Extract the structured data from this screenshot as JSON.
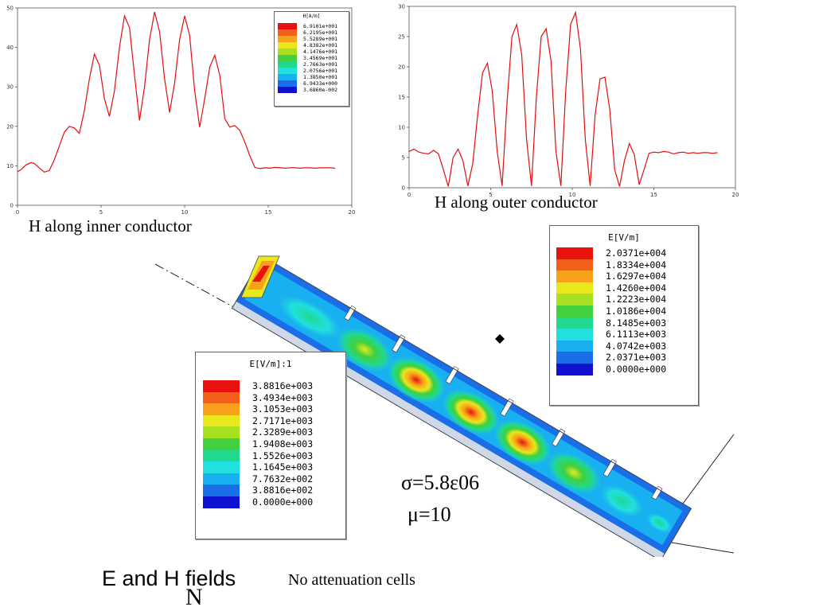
{
  "captions": {
    "inner": "H along inner conductor",
    "outer": "H along outer conductor",
    "fields": "E and H fields",
    "fields_sub": "N",
    "no_attenuation": "No attenuation cells"
  },
  "params": {
    "sigma": "σ=5.8ε06",
    "mu": "μ=10"
  },
  "legends": {
    "h_inner": {
      "title": "H[A/m]",
      "values": [
        "6.9101e+001",
        "6.2195e+001",
        "5.5289e+001",
        "4.8382e+001",
        "4.1476e+001",
        "3.4569e+001",
        "2.7663e+001",
        "2.0756e+001",
        "1.3850e+001",
        "6.9433e+000",
        "3.6860e-002"
      ],
      "colors": [
        "#e8120f",
        "#f0601a",
        "#f8a21a",
        "#e8e81c",
        "#a6e020",
        "#40d040",
        "#20d890",
        "#20e0e0",
        "#18b0f0",
        "#1a6fe8",
        "#1010d0"
      ]
    },
    "e_right": {
      "title": "E[V/m]",
      "values": [
        "2.0371e+004",
        "1.8334e+004",
        "1.6297e+004",
        "1.4260e+004",
        "1.2223e+004",
        "1.0186e+004",
        "8.1485e+003",
        "6.1113e+003",
        "4.0742e+003",
        "2.0371e+003",
        "0.0000e+000"
      ],
      "colors": [
        "#e8120f",
        "#f0601a",
        "#f8a21a",
        "#e8e81c",
        "#a6e020",
        "#40d040",
        "#20d890",
        "#20e0e0",
        "#18b0f0",
        "#1a6fe8",
        "#1010d0"
      ]
    },
    "e_left": {
      "title": "E[V/m]:1",
      "values": [
        "3.8816e+003",
        "3.4934e+003",
        "3.1053e+003",
        "2.7171e+003",
        "2.3289e+003",
        "1.9408e+003",
        "1.5526e+003",
        "1.1645e+003",
        "7.7632e+002",
        "3.8816e+002",
        "0.0000e+000"
      ],
      "colors": [
        "#e8120f",
        "#f0601a",
        "#f8a21a",
        "#e8e81c",
        "#a6e020",
        "#40d040",
        "#20d890",
        "#20e0e0",
        "#18b0f0",
        "#1a6fe8",
        "#1010d0"
      ]
    }
  },
  "chart_data": [
    {
      "type": "line",
      "title": "",
      "xlabel": "",
      "ylabel": "",
      "xlim": [
        0,
        20
      ],
      "ylim": [
        0,
        50
      ],
      "xticks": [
        0,
        5,
        10,
        15,
        20
      ],
      "yticks": [
        0,
        10,
        20,
        30,
        40,
        50
      ],
      "line_color": "#e01010",
      "series": [
        {
          "x": [
            0,
            0.2,
            0.5,
            0.8,
            1.0,
            1.3,
            1.6,
            1.9,
            2.2,
            2.5,
            2.8,
            3.1,
            3.4,
            3.7,
            4.0,
            4.3,
            4.6,
            4.9,
            5.2,
            5.5,
            5.8,
            6.1,
            6.4,
            6.7,
            7.0,
            7.3,
            7.6,
            7.9,
            8.2,
            8.5,
            8.8,
            9.1,
            9.4,
            9.7,
            10.0,
            10.3,
            10.6,
            10.9,
            11.2,
            11.5,
            11.8,
            12.1,
            12.4,
            12.7,
            13.0,
            13.3,
            13.6,
            13.9,
            14.2,
            14.5,
            14.8,
            15.1,
            15.4,
            15.7,
            16.0,
            16.3,
            16.6,
            16.9,
            17.2,
            17.5,
            17.8,
            18.1,
            18.4,
            18.7,
            19.0
          ],
          "y": [
            8.5,
            9.0,
            10.2,
            10.8,
            10.6,
            9.5,
            8.4,
            8.8,
            11.5,
            15.0,
            18.5,
            20.0,
            19.6,
            18.2,
            24.0,
            32.0,
            38.3,
            35.5,
            27.0,
            22.5,
            29.0,
            40.0,
            48.0,
            45.0,
            33.0,
            21.5,
            30.0,
            42.0,
            49.0,
            44.0,
            32.0,
            23.5,
            31.0,
            42.0,
            48.0,
            43.0,
            29.0,
            19.8,
            27.0,
            35.0,
            38.0,
            33.0,
            22.0,
            19.8,
            20.2,
            19.0,
            16.0,
            12.5,
            9.6,
            9.3,
            9.5,
            9.4,
            9.6,
            9.5,
            9.4,
            9.5,
            9.5,
            9.4,
            9.5,
            9.5,
            9.4,
            9.5,
            9.5,
            9.5,
            9.4
          ]
        }
      ]
    },
    {
      "type": "line",
      "title": "",
      "xlabel": "",
      "ylabel": "",
      "xlim": [
        0,
        20
      ],
      "ylim": [
        0,
        30
      ],
      "xticks": [
        0,
        5,
        10,
        15,
        20
      ],
      "yticks": [
        0,
        5,
        10,
        15,
        20,
        25,
        30
      ],
      "line_color": "#e01010",
      "series": [
        {
          "x": [
            0,
            0.3,
            0.6,
            0.9,
            1.2,
            1.5,
            1.8,
            2.1,
            2.4,
            2.7,
            3.0,
            3.3,
            3.6,
            3.9,
            4.2,
            4.5,
            4.8,
            5.1,
            5.4,
            5.7,
            6.0,
            6.3,
            6.6,
            6.9,
            7.2,
            7.5,
            7.8,
            8.1,
            8.4,
            8.7,
            9.0,
            9.3,
            9.6,
            9.9,
            10.2,
            10.5,
            10.8,
            11.1,
            11.4,
            11.7,
            12.0,
            12.3,
            12.6,
            12.9,
            13.2,
            13.5,
            13.8,
            14.1,
            14.4,
            14.7,
            15.0,
            15.3,
            15.6,
            15.9,
            16.2,
            16.5,
            16.8,
            17.1,
            17.4,
            17.7,
            18.0,
            18.3,
            18.6,
            18.9
          ],
          "y": [
            6.0,
            6.4,
            5.9,
            5.7,
            5.6,
            6.2,
            5.6,
            3.0,
            0.2,
            5.0,
            6.4,
            4.5,
            0.3,
            4.0,
            12.0,
            19.0,
            20.6,
            16.0,
            6.0,
            0.3,
            14.0,
            25.0,
            27.0,
            22.0,
            8.0,
            0.3,
            15.0,
            25.0,
            26.3,
            21.0,
            6.0,
            0.3,
            16.0,
            27.0,
            29.0,
            23.0,
            8.0,
            0.3,
            12.0,
            18.0,
            18.3,
            13.0,
            3.0,
            0.2,
            4.5,
            7.3,
            5.5,
            0.5,
            3.0,
            5.7,
            5.9,
            5.8,
            6.0,
            5.9,
            5.6,
            5.8,
            5.9,
            5.7,
            5.8,
            5.7,
            5.8,
            5.8,
            5.7,
            5.8
          ]
        }
      ]
    }
  ]
}
